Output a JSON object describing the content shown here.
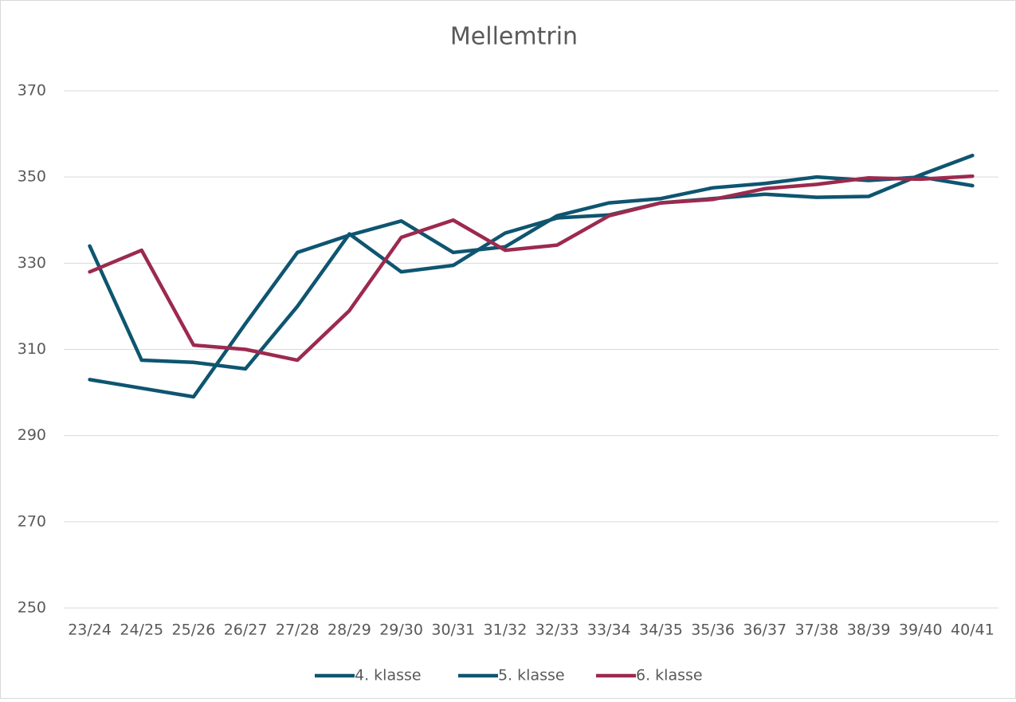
{
  "chart_data": {
    "type": "line",
    "title": "Mellemtrin",
    "categories": [
      "23/24",
      "24/25",
      "25/26",
      "26/27",
      "27/28",
      "28/29",
      "29/30",
      "30/31",
      "31/32",
      "32/33",
      "33/34",
      "34/35",
      "35/36",
      "36/37",
      "37/38",
      "38/39",
      "39/40",
      "40/41"
    ],
    "series": [
      {
        "name": "4. klasse",
        "color": "#0e5570",
        "values": [
          303,
          301,
          299,
          316,
          332.5,
          336.5,
          339.8,
          332.5,
          333.8,
          341,
          344,
          345,
          347.5,
          348.5,
          350,
          349.2,
          350,
          348
        ]
      },
      {
        "name": "5. klasse",
        "color": "#0e5570",
        "values": [
          334,
          307.5,
          307,
          305.5,
          320,
          336.8,
          328,
          329.5,
          337,
          340.5,
          341.2,
          344,
          345,
          346,
          345.3,
          345.5,
          350.5,
          355
        ]
      },
      {
        "name": "6. klasse",
        "color": "#9c2a4e",
        "values": [
          328,
          333,
          311,
          310,
          307.5,
          319,
          336,
          340,
          333,
          334.2,
          341,
          344,
          344.8,
          347.3,
          348.3,
          349.8,
          349.5,
          350.2
        ]
      }
    ],
    "ylim": [
      250,
      370
    ],
    "yticks": [
      250,
      270,
      290,
      310,
      330,
      350,
      370
    ],
    "grid": true,
    "legend": "bottom"
  }
}
